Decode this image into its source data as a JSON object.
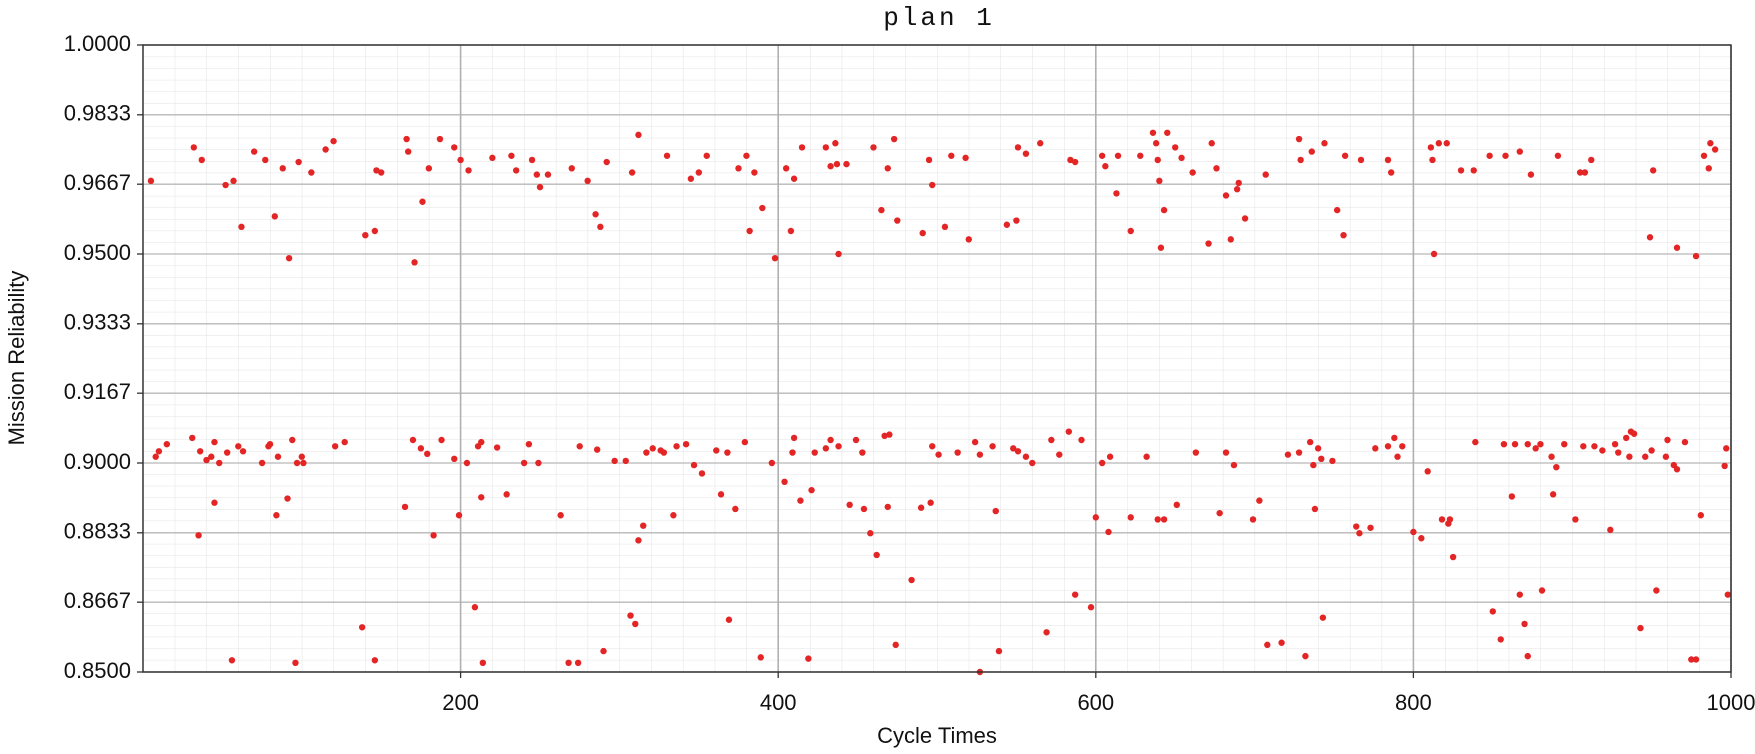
{
  "chart_data": {
    "type": "scatter",
    "title": "plan 1",
    "xlabel": "Cycle Times",
    "ylabel": "Mission Reliability",
    "color": "#e32526",
    "grid": true,
    "xlim": [
      0,
      1000
    ],
    "xticks": [
      200,
      400,
      600,
      800,
      1000
    ],
    "ylim": [
      0.85,
      1
    ],
    "yticks": [
      {
        "value": 1,
        "label": "1.0000"
      },
      {
        "value": 0.9833,
        "label": "0.9833"
      },
      {
        "value": 0.9667,
        "label": "0.9667"
      },
      {
        "value": 0.95,
        "label": "0.9500"
      },
      {
        "value": 0.9333,
        "label": "0.9333"
      },
      {
        "value": 0.9167,
        "label": "0.9167"
      },
      {
        "value": 0.9,
        "label": "0.9000"
      },
      {
        "value": 0.8833,
        "label": "0.8833"
      },
      {
        "value": 0.8667,
        "label": "0.8667"
      },
      {
        "value": 0.85,
        "label": "0.8500"
      }
    ],
    "x": [
      5,
      32,
      37,
      52,
      57,
      62,
      70,
      77,
      83,
      88,
      92,
      98,
      106,
      115,
      120,
      140,
      146,
      147,
      150,
      166,
      167,
      171,
      176,
      180,
      187,
      196,
      200,
      205,
      220,
      232,
      235,
      245,
      248,
      250,
      255,
      270,
      280,
      285,
      288,
      292,
      308,
      312,
      330,
      345,
      350,
      355,
      375,
      380,
      382,
      385,
      390,
      398,
      405,
      408,
      410,
      415,
      430,
      433,
      436,
      437,
      438,
      443,
      460,
      465,
      469,
      473,
      475,
      491,
      495,
      497,
      505,
      509,
      518,
      520,
      544,
      550,
      551,
      556,
      565,
      584,
      587,
      604,
      606,
      613,
      614,
      622,
      628,
      636,
      638,
      639,
      640,
      641,
      643,
      645,
      650,
      654,
      661,
      671,
      673,
      676,
      682,
      685,
      689,
      690,
      694,
      707,
      728,
      729,
      736,
      744,
      752,
      756,
      757,
      767,
      784,
      786,
      811,
      812,
      813,
      816,
      821,
      830,
      838,
      848,
      858,
      867,
      874,
      891,
      905,
      908,
      912,
      949,
      951,
      966,
      978,
      983,
      986,
      987,
      990,
      8,
      10,
      15,
      31,
      35,
      36,
      40,
      43,
      45,
      45,
      48,
      53,
      56,
      60,
      63,
      75,
      79,
      80,
      84,
      85,
      91,
      94,
      96,
      97,
      100,
      101,
      121,
      127,
      138,
      146,
      165,
      170,
      175,
      179,
      183,
      188,
      196,
      199,
      204,
      209,
      211,
      213,
      213,
      214,
      223,
      229,
      240,
      243,
      249,
      263,
      268,
      274,
      275,
      286,
      290,
      297,
      304,
      307,
      310,
      312,
      315,
      317,
      321,
      326,
      328,
      334,
      336,
      342,
      347,
      352,
      361,
      364,
      368,
      369,
      373,
      379,
      389,
      396,
      404,
      409,
      410,
      414,
      419,
      421,
      423,
      430,
      433,
      438,
      445,
      449,
      453,
      454,
      458,
      462,
      467,
      469,
      470,
      474,
      484,
      490,
      496,
      497,
      501,
      513,
      524,
      527,
      527,
      535,
      537,
      539,
      548,
      551,
      556,
      560,
      569,
      572,
      577,
      583,
      587,
      591,
      597,
      600,
      604,
      608,
      609,
      622,
      632,
      639,
      643,
      651,
      663,
      678,
      682,
      687,
      699,
      703,
      708,
      717,
      721,
      728,
      732,
      735,
      737,
      738,
      740,
      742,
      743,
      749,
      764,
      766,
      773,
      776,
      784,
      788,
      790,
      793,
      800,
      805,
      809,
      818,
      822,
      823,
      825,
      839,
      850,
      855,
      857,
      862,
      864,
      867,
      870,
      872,
      872,
      877,
      880,
      881,
      887,
      888,
      890,
      895,
      902,
      907,
      914,
      919,
      924,
      927,
      929,
      934,
      936,
      937,
      939,
      943,
      946,
      950,
      953,
      959,
      960,
      964,
      966,
      971,
      975,
      978,
      981,
      996,
      997,
      998
    ],
    "values": [
      0.9675,
      0.9755,
      0.9725,
      0.9665,
      0.9675,
      0.9565,
      0.9745,
      0.9725,
      0.959,
      0.9705,
      0.949,
      0.972,
      0.9695,
      0.975,
      0.977,
      0.9545,
      0.9555,
      0.97,
      0.9695,
      0.9775,
      0.9745,
      0.948,
      0.9625,
      0.9705,
      0.9775,
      0.9755,
      0.9725,
      0.97,
      0.973,
      0.9735,
      0.97,
      0.9725,
      0.969,
      0.966,
      0.969,
      0.9705,
      0.9675,
      0.9595,
      0.9565,
      0.972,
      0.9695,
      0.9785,
      0.9735,
      0.968,
      0.9695,
      0.9735,
      0.9705,
      0.9735,
      0.9555,
      0.9695,
      0.961,
      0.949,
      0.9705,
      0.9555,
      0.968,
      0.9755,
      0.9755,
      0.971,
      0.9765,
      0.9715,
      0.95,
      0.9715,
      0.9755,
      0.9605,
      0.9705,
      0.9775,
      0.958,
      0.955,
      0.9725,
      0.9665,
      0.9565,
      0.9735,
      0.973,
      0.9535,
      0.957,
      0.958,
      0.9755,
      0.974,
      0.9765,
      0.9725,
      0.972,
      0.9735,
      0.971,
      0.9645,
      0.9735,
      0.9555,
      0.9735,
      0.979,
      0.9765,
      0.9725,
      0.9675,
      0.9515,
      0.9605,
      0.979,
      0.9755,
      0.973,
      0.9695,
      0.9525,
      0.9765,
      0.9705,
      0.964,
      0.9535,
      0.9655,
      0.967,
      0.9585,
      0.969,
      0.9775,
      0.9725,
      0.9745,
      0.9765,
      0.9605,
      0.9545,
      0.9735,
      0.9725,
      0.9725,
      0.9695,
      0.9755,
      0.9725,
      0.95,
      0.9765,
      0.9765,
      0.97,
      0.97,
      0.9735,
      0.9735,
      0.9745,
      0.969,
      0.9735,
      0.9695,
      0.9695,
      0.9725,
      0.954,
      0.97,
      0.9515,
      0.9495,
      0.9735,
      0.9705,
      0.9765,
      0.975,
      0.9015,
      0.9028,
      0.9045,
      0.906,
      0.8827,
      0.9028,
      0.9007,
      0.9015,
      0.905,
      0.8905,
      0.9,
      0.9025,
      0.8528,
      0.904,
      0.9028,
      0.9,
      0.904,
      0.9045,
      0.8875,
      0.9015,
      0.8915,
      0.9055,
      0.8522,
      0.9,
      0.9015,
      0.9,
      0.904,
      0.905,
      0.8607,
      0.8528,
      0.8895,
      0.9055,
      0.9035,
      0.9022,
      0.8827,
      0.9055,
      0.901,
      0.8875,
      0.9,
      0.8655,
      0.904,
      0.905,
      0.8918,
      0.8522,
      0.9037,
      0.8925,
      0.9,
      0.9045,
      0.9,
      0.8875,
      0.8522,
      0.8522,
      0.904,
      0.9032,
      0.855,
      0.9005,
      0.9005,
      0.8635,
      0.8615,
      0.8815,
      0.885,
      0.9025,
      0.9035,
      0.903,
      0.9025,
      0.8875,
      0.904,
      0.9045,
      0.8995,
      0.8975,
      0.903,
      0.8925,
      0.9025,
      0.8625,
      0.889,
      0.905,
      0.8535,
      0.9,
      0.8955,
      0.9025,
      0.906,
      0.891,
      0.8532,
      0.8935,
      0.9025,
      0.9035,
      0.9055,
      0.904,
      0.89,
      0.9055,
      0.9025,
      0.889,
      0.8832,
      0.878,
      0.9065,
      0.8895,
      0.9068,
      0.8565,
      0.872,
      0.8893,
      0.8905,
      0.904,
      0.902,
      0.9025,
      0.905,
      0.902,
      0.85,
      0.904,
      0.8885,
      0.855,
      0.9035,
      0.9028,
      0.9015,
      0.9,
      0.8595,
      0.9055,
      0.902,
      0.9075,
      0.8685,
      0.9055,
      0.8655,
      0.887,
      0.9,
      0.8835,
      0.9015,
      0.887,
      0.9015,
      0.8865,
      0.8865,
      0.89,
      0.9025,
      0.888,
      0.9025,
      0.8995,
      0.8865,
      0.891,
      0.8565,
      0.857,
      0.902,
      0.9025,
      0.8538,
      0.905,
      0.8995,
      0.889,
      0.9035,
      0.901,
      0.863,
      0.9005,
      0.8848,
      0.8832,
      0.8845,
      0.9035,
      0.904,
      0.906,
      0.9015,
      0.904,
      0.8835,
      0.882,
      0.898,
      0.8865,
      0.8855,
      0.8865,
      0.8775,
      0.905,
      0.8645,
      0.8578,
      0.9045,
      0.892,
      0.9045,
      0.8685,
      0.8615,
      0.9045,
      0.8538,
      0.9035,
      0.9045,
      0.8695,
      0.9015,
      0.8925,
      0.899,
      0.9045,
      0.8865,
      0.904,
      0.904,
      0.903,
      0.884,
      0.9045,
      0.9025,
      0.906,
      0.9015,
      0.9075,
      0.907,
      0.8605,
      0.9015,
      0.903,
      0.8695,
      0.9015,
      0.9055,
      0.8995,
      0.8985,
      0.905,
      0.853,
      0.853,
      0.8875,
      0.8993,
      0.9035,
      0.8685
    ]
  }
}
